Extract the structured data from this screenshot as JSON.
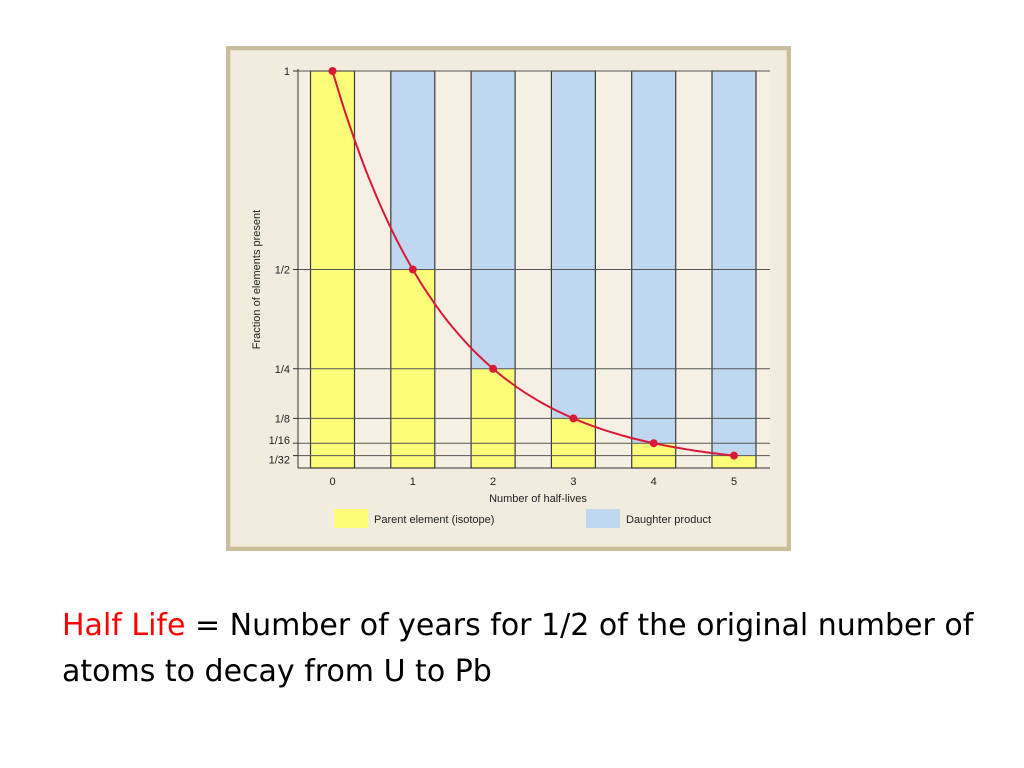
{
  "chart_data": {
    "type": "bar",
    "x": [
      0,
      1,
      2,
      3,
      4,
      5
    ],
    "x_tick_labels": [
      "0",
      "1",
      "2",
      "3",
      "4",
      "5"
    ],
    "series": [
      {
        "name": "Parent element (isotope)",
        "values": [
          1,
          0.5,
          0.25,
          0.125,
          0.0625,
          0.03125
        ]
      },
      {
        "name": "Daughter product",
        "values": [
          0,
          0.5,
          0.75,
          0.875,
          0.9375,
          0.96875
        ]
      }
    ],
    "curve": {
      "x": [
        0,
        1,
        2,
        3,
        4,
        5
      ],
      "y": [
        1,
        0.5,
        0.25,
        0.125,
        0.0625,
        0.03125
      ]
    },
    "stacked": true,
    "xlabel": "Number of half-lives",
    "ylabel": "Fraction of elements present",
    "y_ticks": [
      {
        "value": 1,
        "label": "1"
      },
      {
        "value": 0.5,
        "label": "1/2"
      },
      {
        "value": 0.25,
        "label": "1/4"
      },
      {
        "value": 0.125,
        "label": "1/8"
      },
      {
        "value": 0.0625,
        "label": "1/16"
      },
      {
        "value": 0.03125,
        "label": "1/32"
      }
    ],
    "ylim": [
      0,
      1
    ],
    "grid": true,
    "legend_position": "bottom",
    "colors": {
      "parent": "#fcfc78",
      "daughter": "#c0d8ef",
      "curve": "#d81a38",
      "grid": "#555555",
      "plot_bg": "#f5f0e3"
    }
  },
  "caption": {
    "term": "Half Life",
    "rest": " = Number of years for 1/2 of the original number of atoms to decay from U to Pb",
    "term_color": "#ff0000"
  }
}
